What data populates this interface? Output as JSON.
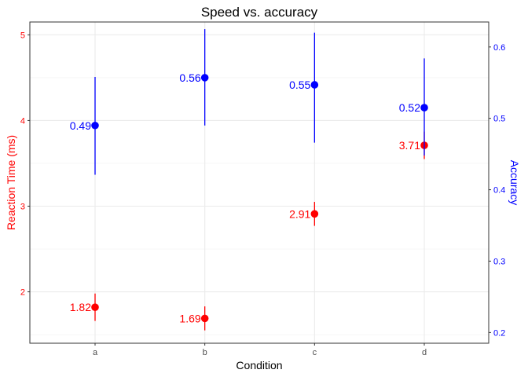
{
  "chart_data": {
    "type": "scatter",
    "title": "Speed vs. accuracy",
    "xlabel": "Condition",
    "ylabel": "Reaction Time (ms)",
    "y2label": "Accuracy",
    "categories": [
      "a",
      "b",
      "c",
      "d"
    ],
    "ylim": [
      1.4,
      5.15
    ],
    "y2lim": [
      0.185,
      0.635
    ],
    "yticks": [
      "2",
      "3",
      "4",
      "5"
    ],
    "y2ticks": [
      "0.2",
      "0.3",
      "0.4",
      "0.5",
      "0.6"
    ],
    "grid": true,
    "colors": {
      "reaction_time": "#ff0000",
      "accuracy": "#0000ff"
    },
    "series": [
      {
        "axis": "left",
        "color": "#ff0000",
        "values": [
          1.82,
          1.69,
          2.91,
          3.71
        ],
        "lower": [
          1.66,
          1.55,
          2.77,
          3.55
        ],
        "upper": [
          1.98,
          1.83,
          3.05,
          3.87
        ],
        "labels": [
          "1.82",
          "1.69",
          "2.91",
          "3.71"
        ]
      },
      {
        "axis": "right",
        "color": "#0000ff",
        "values": [
          0.49,
          0.557,
          0.547,
          0.515
        ],
        "lower": [
          0.421,
          0.49,
          0.466,
          0.448
        ],
        "upper": [
          0.558,
          0.625,
          0.62,
          0.584
        ],
        "labels": [
          "0.49",
          "0.56",
          "0.55",
          "0.52"
        ]
      }
    ]
  }
}
